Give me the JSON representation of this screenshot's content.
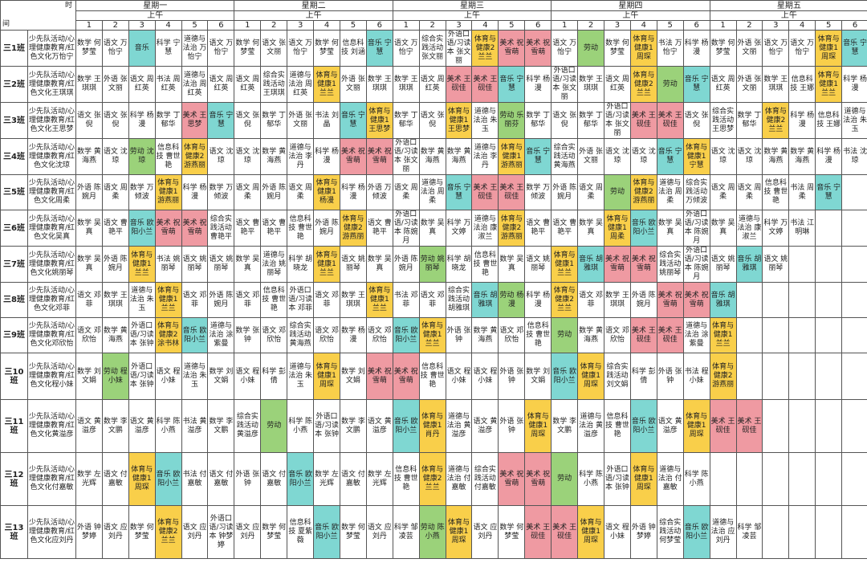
{
  "corner": {
    "top": "时",
    "bottom": "间"
  },
  "days": [
    "星期一",
    "星期二",
    "星期三",
    "星期四",
    "星期五"
  ],
  "half_label": "上午",
  "periods": [
    "1",
    "2",
    "3",
    "4",
    "5",
    "6"
  ],
  "colors": {
    "音乐": "#7fd7d2",
    "劳动": "#9bd27a",
    "体育与健康": "#f9cf4a",
    "美术": "#ef9aa2"
  },
  "classes": [
    {
      "name": "三1班",
      "sub": "少先队活动/心理健康教育/红色文化万怡宁",
      "cells": [
        "数学 何梦莹",
        "语文 万怡宁",
        "音乐",
        "科学 宁慧",
        "道德与法治 万怡宁",
        "语文 万怡宁",
        "数学 何梦莹",
        "语文 张文丽",
        "语文 万怡宁",
        "数学 何梦莹",
        "信息科技 刘涵",
        "音乐 宁慧",
        "语文 万怡宁",
        "综合实践活动 张文丽",
        "外语口语/习读本 张文丽",
        "体育与健康2 兰兰",
        "美术 祝雪萌",
        "美术 祝雪萌",
        "语文 万怡宁",
        "劳动",
        "数学 何梦莹",
        "体育与健康1 周琛",
        "书法 万怡宁",
        "科学 杨漫",
        "数学 何梦莹",
        "外语 张文丽",
        "语文 万怡宁",
        "语文 万怡宁",
        "体育与健康1 周琛",
        "音乐 宁慧"
      ]
    },
    {
      "name": "三2班",
      "sub": "少先队活动/心理健康教育/红色文化王琪琪",
      "cells": [
        "数学 王琪琪",
        "外语 张文丽",
        "语文 周红英",
        "书法 周红英",
        "道德与法治 周红英",
        "语文 周红英",
        "语文 周红英",
        "综合实践活动 王琪琪",
        "道德与法治 周红英",
        "体育与健康1 兰兰",
        "外语 张文丽",
        "数学 王琪琪",
        "数学 王琪琪",
        "语文 周红英",
        "美术 王砚佳",
        "美术 王砚佳",
        "音乐 宁慧",
        "科学 杨漫",
        "外语口语/习读本 张文丽",
        "数学 王琪琪",
        "语文 周红英",
        "体育与健康2 兰兰",
        "劳动",
        "音乐 宁慧",
        "语文 周红英",
        "外语 张文丽",
        "数学 王琪琪",
        "信息科技 王娜",
        "体育与健康1 兰兰",
        "科学 杨漫"
      ]
    },
    {
      "name": "三3班",
      "sub": "少先队活动/心理健康教育/红色文化王思梦",
      "cells": [
        "语文 张倪",
        "语文 张倪",
        "科学 杨漫",
        "数学 丁郁华",
        "美术 王思梦",
        "音乐 宁慧",
        "语文 张倪",
        "数学 丁郁华",
        "外语 张文丽",
        "书法 刘晶",
        "音乐 宁慧",
        "体育与健康1 王思梦",
        "数学 丁郁华",
        "语文 张倪",
        "体育与健康1 王思梦",
        "道德与法治 朱玉",
        "劳动 乐丽芬",
        "数学 丁郁华",
        "语文 张倪",
        "数学 丁郁华",
        "外语口语/习读本 张文丽",
        "美术 王砚佳",
        "美术 王砚佳",
        "语文 张倪",
        "综合实践活动 王思梦",
        "数学 丁郁华",
        "体育与健康2 兰兰",
        "科学 杨漫",
        "信息科技 王娜",
        "道德与法治 朱玉"
      ]
    },
    {
      "name": "三4班",
      "sub": "少先队活动/心理健康教育/红色文化沈琼",
      "cells": [
        "数学 黄海燕",
        "语文 沈琼",
        "劳动 沈琼",
        "信息科技 曹世艳",
        "体育与健康2 游燕丽",
        "语文 沈琼",
        "语文 沈琼",
        "数学 黄海燕",
        "道德与法治 李丹",
        "科学 杨漫",
        "美术 祝雪萌",
        "美术 祝雪萌",
        "外语口语/习读本 张文丽",
        "数学 黄海燕",
        "数学 黄海燕",
        "道德与法治 李丹",
        "体育与健康1 游燕丽",
        "音乐 宁慧",
        "综合实践活动 黄海燕",
        "外语 张文丽",
        "语文 沈琼",
        "语文 沈琼",
        "音乐 宁慧",
        "体育与健康1 宁慧",
        "语文 沈琼",
        "语文 沈琼",
        "数学 黄海燕",
        "数学 黄海燕",
        "科学 杨漫",
        "书法 沈琼"
      ]
    },
    {
      "name": "三5班",
      "sub": "少先队活动/心理健康教育/红色文化周柔",
      "cells": [
        "外语 陈婉月",
        "语文 周柔",
        "数学 万倾波",
        "体育与健康1 游燕丽",
        "科学 杨漫",
        "数学 万倾波",
        "语文 周柔",
        "外语 陈婉月",
        "语文 周柔",
        "体育与健康1 杨漫",
        "科学 杨漫",
        "外语 万倾波",
        "语文 周柔",
        "道德与法治 周柔",
        "音乐 宁慧",
        "美术 王砚佳",
        "美术 王砚佳",
        "数学 万倾波",
        "外语 陈婉月",
        "语文 周柔",
        "劳动",
        "体育与健康2 游燕丽",
        "道德与法治 周柔",
        "综合实践活动 万倾波",
        "语文 周柔",
        "语文 周柔",
        "信息科技 曹世艳",
        "书法 周柔",
        "音乐 宁慧"
      ]
    },
    {
      "name": "三6班",
      "sub": "少先队活动/心理健康教育/红色文化吴真",
      "cells": [
        "数学 吴真",
        "语文 曹艳平",
        "音乐 欧阳小兰",
        "美术 祝雪萌",
        "美术 祝雪萌",
        "综合实践活动 曹艳平",
        "语文 曹艳平",
        "语文 曹艳平",
        "信息科技 曹世艳",
        "外语 陈婉月",
        "体育与健康2 游燕丽",
        "语文 曹艳平",
        "外语口语/习读本 陈婉月",
        "数学 吴真",
        "科学 万文婷",
        "道德与法治 康淑兰",
        "体育与健康2 游燕丽",
        "语文 曹艳平",
        "语文 曹艳平",
        "数学 吴真",
        "体育与健康1 周柔",
        "音乐 欧阳小兰",
        "数学 吴真",
        "外语口语/习读本 陈婉月",
        "数学 吴真",
        "道德与法治 康淑兰",
        "科学 万文婷",
        "书法 江明琳"
      ]
    },
    {
      "name": "三7班",
      "sub": "少先队活动/心理健康教育/红色文化姚丽琴",
      "cells": [
        "数学 吴真",
        "外语 陈婉月",
        "体育与健康1 兰兰",
        "书法 姚丽琴",
        "语文 姚丽琴",
        "语文 姚丽琴",
        "数学 吴真",
        "道德与法治 姚丽琴",
        "科学 胡晓龙",
        "体育与健康1 兰兰",
        "语文 姚丽琴",
        "数学 吴真",
        "外语 陈婉月",
        "劳动 姚丽琴",
        "科学 胡晓龙",
        "信息科技 曹世艳",
        "数学 吴真",
        "语文 姚丽琴",
        "体育与健康1 兰兰",
        "音乐 胡雅琪",
        "美术 祝雪萌",
        "美术 祝雪萌",
        "综合实践活动 姚丽琴",
        "外语口语/习读本 陈婉月",
        "语文 姚丽琴",
        "音乐 胡雅琪",
        "语文 姚丽琴"
      ]
    },
    {
      "name": "三8班",
      "sub": "少先队活动/心理健康教育/红色文化邓菲",
      "cells": [
        "语文 邓菲",
        "数学 王琪琪",
        "道德与法治 朱玉",
        "体育与健康1 兰兰",
        "语文 邓菲",
        "外语 陈婉月",
        "语文 邓菲",
        "信息科技 曹世艳",
        "外语口语/习读本 邓菲",
        "语文 邓菲",
        "数学 王琪琪",
        "体育与健康1 兰兰",
        "书法 邓菲",
        "语文 邓菲",
        "综合实践活动 胡雅琪",
        "音乐 胡雅琪",
        "劳动 杨漫",
        "科学 杨漫",
        "体育与健康2 兰兰",
        "语文 邓菲",
        "数学 王琪琪",
        "外语 陈婉月",
        "美术 祝雪萌",
        "美术 祝雪萌",
        "音乐 胡雅琪"
      ]
    },
    {
      "name": "三9班",
      "sub": "少先队活动/心理健康教育/红色文化邓欣怡",
      "cells": [
        "语文 邓欣怡",
        "数学 黄海燕",
        "外语口语/习读本 张钟",
        "体育与健康2 涂书林",
        "音乐 欧阳小兰",
        "道德与法治 涂紫曼",
        "数学 张钟",
        "语文 邓欣怡",
        "综合实践活动 黄海燕",
        "语文 邓欣怡",
        "数学 杨漫",
        "语文 邓欣怡",
        "音乐 欧阳小兰",
        "体育与健康1 兰兰",
        "外语 张钟",
        "数学 黄海燕",
        "语文 邓欣怡",
        "信息科技 曹世艳",
        "劳动",
        "数学 黄海燕",
        "语文 邓欣怡",
        "美术 王砚佳",
        "美术 王砚佳",
        "道德与法治 涂紫曼",
        "体育与健康1 兰兰"
      ]
    },
    {
      "name": "三10班",
      "sub": "少先队活动/心理健康教育/红色文化程小妹",
      "cells": [
        "数学 刘文娟",
        "劳动 程小妹",
        "外语口语/习读本 张钟",
        "语文 程小妹",
        "道德与法治 朱玉",
        "数学 刘文娟",
        "语文 程小妹",
        "科学 彭倩",
        "道德与法治 朱玉",
        "体育与健康1 周琛",
        "数学 刘文娟",
        "美术 祝雪萌",
        "美术 祝雪萌",
        "信息科技 曹世艳",
        "语文 程小妹",
        "语文 程小妹",
        "外语 张钟",
        "数学 刘文娟",
        "音乐 欧阳小兰",
        "体育与健康1 周琛",
        "综合实践活动 刘文娟",
        "科学 彭倩",
        "外语 张钟",
        "书法 程小妹",
        "体育与健康2 游燕丽"
      ]
    },
    {
      "name": "三11班",
      "sub": "少先队活动/心理健康教育/红色文化黄溢彦",
      "cells": [
        "语文 黄溢彦",
        "数学 李文鹏",
        "语文 黄溢彦",
        "科学 陈小燕",
        "书法 黄溢彦",
        "数学 李文鹏",
        "综合实践活动 黄溢彦",
        "劳动",
        "科学 陈小燕",
        "外语口语/习读本 张钟",
        "数学 李文鹏",
        "语文 黄溢彦",
        "音乐 欧阳小兰",
        "体育与健康1 肖丹",
        "道德与法治 黄溢彦",
        "语文 黄溢彦",
        "外语 张钟",
        "体育与健康1 周琛",
        "数学 李文鹏",
        "道德与法治 黄溢彦",
        "信息科技 曹世艳",
        "音乐 欧阳小兰",
        "语文 黄溢彦",
        "体育与健康1 周琛",
        "美术 王砚佳",
        "美术 王砚佳"
      ]
    },
    {
      "name": "三12班",
      "sub": "少先队活动/心理健康教育/红色文化付嘉敏",
      "cells": [
        "数学 左光辉",
        "语文 付嘉敏",
        "体育与健康1 周琛",
        "音乐 欧阳小兰",
        "书法 付嘉敏",
        "语文 付嘉敏",
        "外语 张钟",
        "语文 付嘉敏",
        "音乐 欧阳小兰",
        "数学 左光辉",
        "语文 付嘉敏",
        "数学 左光辉",
        "信息科技 曹世艳",
        "体育与健康2 兰兰",
        "道德与法治 付嘉敏",
        "综合实践活动 付嘉敏",
        "美术 祝雪萌",
        "美术 祝雪萌",
        "劳动",
        "科学 陈小燕",
        "外语口语/习读本 张钟",
        "体育与健康1 周琛",
        "道德与法治 付嘉敏",
        "科学 陈小燕"
      ]
    },
    {
      "name": "三13班",
      "sub": "少先队活动/心理健康教育/红色文化应刘丹",
      "cells": [
        "外语 钟梦婷",
        "语文 应刘丹",
        "数学 何梦莹",
        "体育与健康2 兰兰",
        "语文 应刘丹",
        "外语口语/习读本 钟梦婷",
        "语文 应刘丹",
        "数学 何梦莹",
        "信息科技 夏紫薇",
        "音乐 欧阳小兰",
        "数学 何梦莹",
        "语文 应刘丹",
        "科学 邹凌芸",
        "劳动 陈小燕",
        "体育与健康1 周琛",
        "语文 应刘丹",
        "数学 何梦莹",
        "美术 王砚佳",
        "美术 王砚佳",
        "体育与健康1 周琛",
        "语文 程小妹",
        "外语 钟梦婷",
        "综合实践活动 何梦莹",
        "音乐 欧阳小兰",
        "道德与法治 应刘丹",
        "科学 邹凌芸"
      ]
    }
  ]
}
